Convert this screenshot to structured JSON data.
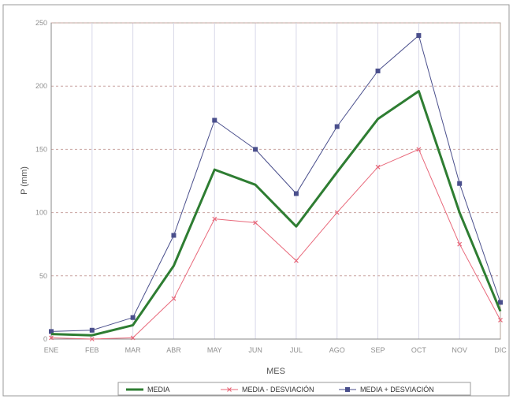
{
  "chart_data": {
    "type": "line",
    "categories": [
      "ENE",
      "FEB",
      "MAR",
      "ABR",
      "MAY",
      "JUN",
      "JUL",
      "AGO",
      "SEP",
      "OCT",
      "NOV",
      "DIC"
    ],
    "xlabel": "MES",
    "ylabel": "P (mm)",
    "ylim": [
      0,
      250
    ],
    "yticks": [
      0,
      50,
      100,
      150,
      200,
      250
    ],
    "grid": true,
    "legend_position": "bottom",
    "series": [
      {
        "name": "MEDIA",
        "color": "#2e7d32",
        "marker": "none",
        "values": [
          4,
          3,
          11,
          58,
          134,
          122,
          89,
          132,
          174,
          196,
          100,
          22
        ]
      },
      {
        "name": "MEDIA - DESVIACIÓN",
        "color": "#e8687a",
        "marker": "x",
        "values": [
          1,
          0,
          1,
          32,
          95,
          92,
          62,
          100,
          136,
          150,
          75,
          15
        ]
      },
      {
        "name": "MEDIA + DESVIACIÓN",
        "color": "#4a4f8c",
        "marker": "square",
        "values": [
          6,
          7,
          17,
          82,
          173,
          150,
          115,
          168,
          212,
          240,
          123,
          29
        ]
      }
    ]
  }
}
